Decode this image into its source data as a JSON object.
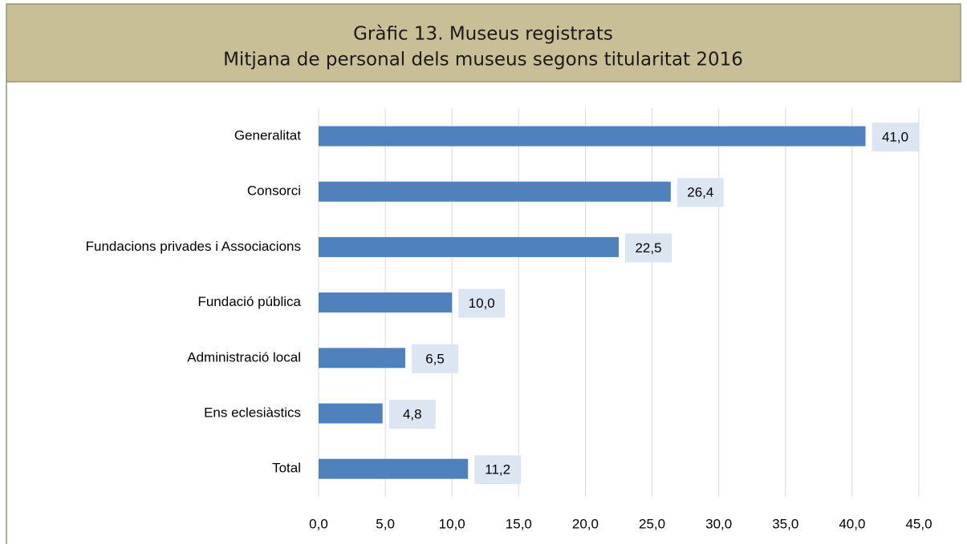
{
  "chart_data": {
    "type": "bar",
    "orientation": "horizontal",
    "title": "Gràfic 13. Museus registrats",
    "subtitle": "Mitjana de personal dels museus segons titularitat 2016",
    "categories": [
      "Generalitat",
      "Consorci",
      "Fundacions privades i Associacions",
      "Fundació pública",
      "Administració local",
      "Ens eclesiàstics",
      "Total"
    ],
    "values": [
      41.0,
      26.4,
      22.5,
      10.0,
      6.5,
      4.8,
      11.2
    ],
    "value_labels": [
      "41,0",
      "26,4",
      "22,5",
      "10,0",
      "6,5",
      "4,8",
      "11,2"
    ],
    "color": "#4f81bd",
    "xlim": [
      0,
      45
    ],
    "xticks": [
      {
        "value": 0,
        "label": "0,0"
      },
      {
        "value": 5,
        "label": "5,0"
      },
      {
        "value": 10,
        "label": "10,0"
      },
      {
        "value": 15,
        "label": "15,0"
      },
      {
        "value": 20,
        "label": "20,0"
      },
      {
        "value": 25,
        "label": "25,0"
      },
      {
        "value": 30,
        "label": "30,0"
      },
      {
        "value": 35,
        "label": "35,0"
      },
      {
        "value": 40,
        "label": "40,0"
      },
      {
        "value": 45,
        "label": "45,0"
      }
    ],
    "grid": true
  }
}
